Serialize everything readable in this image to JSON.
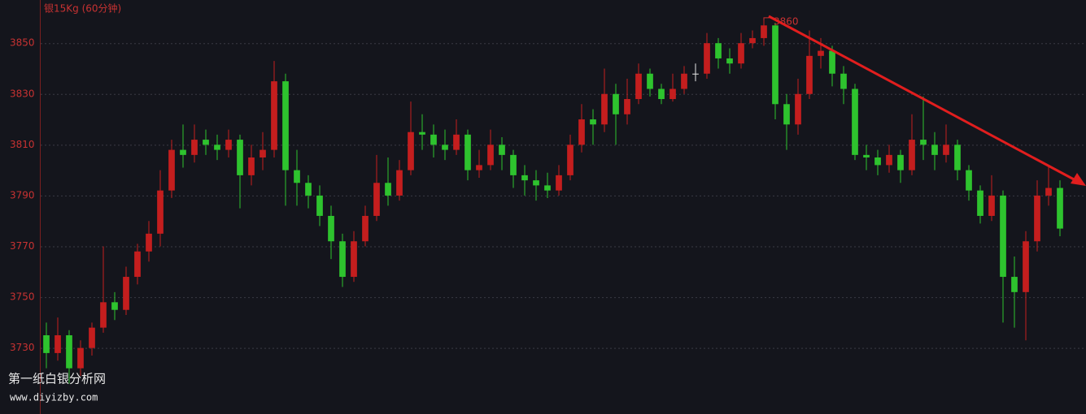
{
  "chart_data": {
    "type": "candlestick",
    "title": "银15Kg  (60分钟)",
    "annotation": "3860",
    "watermark": [
      "第一纸白银分析网",
      "www.diyizby.com"
    ],
    "up_color": "#c41e1e",
    "down_color": "#2ec32e",
    "flat_color": "#e6e6e6",
    "ylim": [
      3704,
      3867
    ],
    "yticks": [
      3730,
      3750,
      3770,
      3790,
      3810,
      3830,
      3850
    ],
    "grid": true,
    "open": [
      3735,
      3728,
      3735,
      3722,
      3730,
      3738,
      3748,
      3745,
      3758,
      3768,
      3775,
      3792,
      3808,
      3806,
      3812,
      3810,
      3808,
      3812,
      3798,
      3805,
      3808,
      3835,
      3800,
      3795,
      3790,
      3782,
      3772,
      3758,
      3772,
      3782,
      3795,
      3790,
      3800,
      3815,
      3814,
      3810,
      3808,
      3814,
      3800,
      3802,
      3810,
      3806,
      3798,
      3796,
      3794,
      3792,
      3798,
      3810,
      3820,
      3818,
      3830,
      3822,
      3828,
      3838,
      3832,
      3828,
      3832,
      3838,
      3838,
      3850,
      3844,
      3842,
      3850,
      3852,
      3857,
      3826,
      3818,
      3830,
      3845,
      3847,
      3838,
      3832,
      3806,
      3805,
      3802,
      3806,
      3800,
      3812,
      3810,
      3806,
      3810,
      3800,
      3792,
      3782,
      3790,
      3758,
      3752,
      3772,
      3790,
      3793
    ],
    "high": [
      3740,
      3742,
      3737,
      3733,
      3740,
      3770,
      3752,
      3762,
      3771,
      3780,
      3800,
      3812,
      3818,
      3818,
      3816,
      3814,
      3816,
      3814,
      3810,
      3815,
      3843,
      3838,
      3808,
      3798,
      3794,
      3786,
      3775,
      3776,
      3786,
      3806,
      3805,
      3804,
      3827,
      3822,
      3818,
      3816,
      3820,
      3816,
      3808,
      3816,
      3813,
      3808,
      3802,
      3800,
      3799,
      3802,
      3814,
      3826,
      3824,
      3840,
      3834,
      3836,
      3842,
      3840,
      3834,
      3838,
      3841,
      3842,
      3854,
      3852,
      3848,
      3854,
      3855,
      3860,
      3858,
      3830,
      3836,
      3855,
      3852,
      3849,
      3841,
      3834,
      3810,
      3808,
      3810,
      3808,
      3822,
      3829,
      3815,
      3818,
      3812,
      3802,
      3794,
      3798,
      3792,
      3766,
      3776,
      3796,
      3802,
      3796
    ],
    "low": [
      3722,
      3725,
      3716,
      3719,
      3727,
      3736,
      3741,
      3743,
      3755,
      3764,
      3770,
      3789,
      3801,
      3803,
      3806,
      3804,
      3805,
      3785,
      3794,
      3800,
      3805,
      3786,
      3786,
      3785,
      3778,
      3765,
      3754,
      3756,
      3770,
      3780,
      3786,
      3788,
      3798,
      3808,
      3805,
      3804,
      3806,
      3796,
      3797,
      3800,
      3800,
      3793,
      3790,
      3788,
      3789,
      3790,
      3796,
      3807,
      3810,
      3815,
      3810,
      3818,
      3826,
      3829,
      3826,
      3827,
      3830,
      3835,
      3836,
      3840,
      3838,
      3840,
      3848,
      3849,
      3820,
      3808,
      3814,
      3828,
      3840,
      3833,
      3826,
      3804,
      3800,
      3798,
      3799,
      3795,
      3798,
      3804,
      3800,
      3803,
      3796,
      3788,
      3779,
      3780,
      3740,
      3738,
      3733,
      3768,
      3786,
      3774
    ],
    "close": [
      3728,
      3735,
      3722,
      3730,
      3738,
      3748,
      3745,
      3758,
      3768,
      3775,
      3792,
      3808,
      3806,
      3812,
      3810,
      3808,
      3812,
      3798,
      3805,
      3808,
      3835,
      3800,
      3795,
      3790,
      3782,
      3772,
      3758,
      3772,
      3782,
      3795,
      3790,
      3800,
      3815,
      3814,
      3810,
      3808,
      3814,
      3800,
      3802,
      3810,
      3806,
      3798,
      3796,
      3794,
      3792,
      3798,
      3810,
      3820,
      3818,
      3830,
      3822,
      3828,
      3838,
      3832,
      3828,
      3832,
      3838,
      3838,
      3850,
      3844,
      3842,
      3850,
      3852,
      3857,
      3826,
      3818,
      3830,
      3845,
      3847,
      3838,
      3832,
      3806,
      3805,
      3802,
      3806,
      3800,
      3812,
      3810,
      3806,
      3810,
      3800,
      3792,
      3782,
      3790,
      3758,
      3752,
      3772,
      3790,
      3793,
      3777
    ]
  }
}
